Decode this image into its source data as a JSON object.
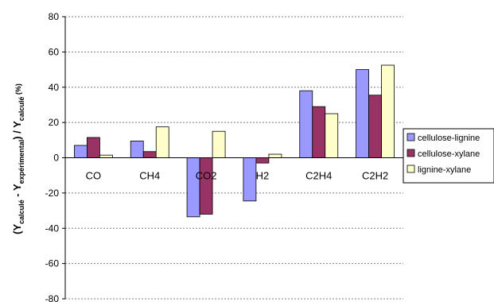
{
  "chart_data": {
    "type": "bar",
    "categories": [
      "CO",
      "CH4",
      "CO2",
      "H2",
      "C2H4",
      "C2H2"
    ],
    "series": [
      {
        "name": "cellulose-lignine",
        "values": [
          7,
          9.5,
          -33.5,
          -24.5,
          38,
          50
        ],
        "color": "#9999ff"
      },
      {
        "name": "cellulose-xylane",
        "values": [
          11.5,
          3.5,
          -32,
          -3,
          29,
          35.5
        ],
        "color": "#993366"
      },
      {
        "name": "lignine-xylane",
        "values": [
          1.5,
          17.5,
          15,
          2,
          25,
          52.5
        ],
        "color": "#ffffcc"
      }
    ],
    "ylim": [
      -80,
      80
    ],
    "yticks": [
      "80",
      "60",
      "40",
      "20",
      "0",
      "-20",
      "-40",
      "-60",
      "-80"
    ],
    "ylabel": {
      "open": "(Y",
      "sub1": "calculé",
      "mid": " - Y",
      "sub2": "expérimental",
      "close": ") / Y",
      "sub3": "calculé",
      "unit": " (%)"
    },
    "grid": true,
    "legend_position": "right"
  }
}
